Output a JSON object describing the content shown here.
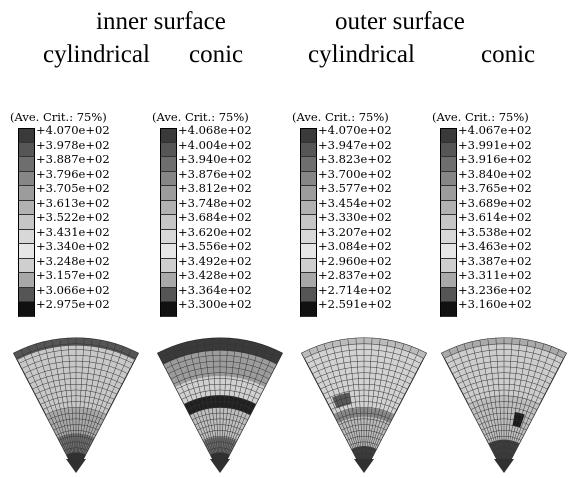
{
  "header": {
    "inner_surface": "inner surface",
    "outer_surface": "outer surface",
    "inner_cylindrical": "cylindrical",
    "inner_conic": "conic",
    "outer_cylindrical": "cylindrical",
    "outer_conic": "conic"
  },
  "colors": {
    "scale": [
      "#3a3a3a",
      "#565656",
      "#6e6e6e",
      "#868686",
      "#9c9c9c",
      "#b2b2b2",
      "#c6c6c6",
      "#d8d8d8",
      "#e6e6e6",
      "#cfcfcf",
      "#a8a8a8",
      "#555555",
      "#111111"
    ]
  },
  "legends": [
    {
      "crit": "(Ave. Crit.: 75%)",
      "values": [
        "+4.070e+02",
        "+3.978e+02",
        "+3.887e+02",
        "+3.796e+02",
        "+3.705e+02",
        "+3.613e+02",
        "+3.522e+02",
        "+3.431e+02",
        "+3.340e+02",
        "+3.248e+02",
        "+3.157e+02",
        "+3.066e+02",
        "+2.975e+02"
      ]
    },
    {
      "crit": "(Ave. Crit.: 75%)",
      "values": [
        "+4.068e+02",
        "+4.004e+02",
        "+3.940e+02",
        "+3.876e+02",
        "+3.812e+02",
        "+3.748e+02",
        "+3.684e+02",
        "+3.620e+02",
        "+3.556e+02",
        "+3.492e+02",
        "+3.428e+02",
        "+3.364e+02",
        "+3.300e+02"
      ]
    },
    {
      "crit": "(Ave. Crit.: 75%)",
      "values": [
        "+4.070e+02",
        "+3.947e+02",
        "+3.823e+02",
        "+3.700e+02",
        "+3.577e+02",
        "+3.454e+02",
        "+3.330e+02",
        "+3.207e+02",
        "+3.084e+02",
        "+2.960e+02",
        "+2.837e+02",
        "+2.714e+02",
        "+2.591e+02"
      ]
    },
    {
      "crit": "(Ave. Crit.: 75%)",
      "values": [
        "+4.067e+02",
        "+3.991e+02",
        "+3.916e+02",
        "+3.840e+02",
        "+3.765e+02",
        "+3.689e+02",
        "+3.614e+02",
        "+3.538e+02",
        "+3.463e+02",
        "+3.387e+02",
        "+3.311e+02",
        "+3.236e+02",
        "+3.160e+02"
      ]
    }
  ],
  "figures": [
    {
      "name": "inner-cylindrical-contour",
      "base": "#c8c8c8",
      "tip": "#303030"
    },
    {
      "name": "inner-conic-contour",
      "base": "#b8b8b8",
      "tip": "#303030"
    },
    {
      "name": "outer-cylindrical-contour",
      "base": "#d2d2d2",
      "tip": "#303030"
    },
    {
      "name": "outer-conic-contour",
      "base": "#cdcdcd",
      "tip": "#303030"
    }
  ]
}
